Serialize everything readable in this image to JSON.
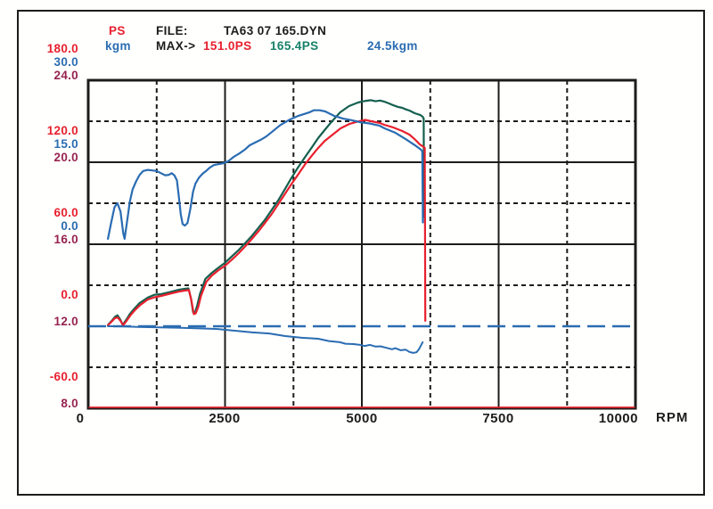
{
  "header": {
    "legend": {
      "ps_label": "PS",
      "kgm_label": "kgm"
    },
    "file_label": "FILE:",
    "file_value": "TA63 07 165.DYN",
    "max_label": "MAX->",
    "max_values": {
      "ps_run1": "151.0PS",
      "ps_run2": "165.4PS",
      "kgm": "24.5kgm"
    }
  },
  "colors": {
    "red": "#e8202e",
    "teal_text": "#178168",
    "teal_curve": "#155f4e",
    "blue": "#2a6cb2",
    "maroon": "#962450",
    "black": "#1c1c1c"
  },
  "chart_data": {
    "type": "line",
    "title": "Dyno run TA63 07 165.DYN - power (PS) and torque (kgm) vs engine speed",
    "xlabel": "RPM",
    "x_axis": {
      "min": 0,
      "max": 10000,
      "label": "RPM",
      "major_ticks": [
        0,
        2500,
        5000,
        7500,
        10000
      ],
      "tick_labels": [
        "0",
        "2500",
        "5000",
        "7500",
        "10000"
      ],
      "minor_dashed_ticks": [
        1250,
        3750,
        6250,
        8750
      ]
    },
    "y_axes": {
      "ps": {
        "min": -60,
        "max": 180,
        "unit": "PS",
        "gridline_labels": [
          "180.0",
          "120.0",
          "60.0",
          "0.0",
          "-60.0"
        ]
      },
      "kgm": {
        "min": -30,
        "max": 30,
        "unit": "kgm",
        "gridline_labels": [
          "30.0",
          "15.0",
          "0.0"
        ]
      },
      "af": {
        "min": 8,
        "max": 24,
        "unit": "",
        "gridline_labels": [
          "24.0",
          "20.0",
          "16.0",
          "12.0",
          "8.0"
        ]
      }
    },
    "grid": {
      "h_solid_ps": [
        120,
        60
      ],
      "h_dashed_ps": [
        150,
        90,
        30,
        -30
      ]
    },
    "reference_line": {
      "scale": "af",
      "value": 12.0,
      "style": "long-dash",
      "colorKey": "blue"
    },
    "series": [
      {
        "name": "power-run-2",
        "scale": "ps",
        "colorKey": "teal_curve",
        "width": 2.2,
        "max_label": "165.4PS",
        "points": [
          [
            360,
            1
          ],
          [
            430,
            4
          ],
          [
            490,
            7
          ],
          [
            535,
            8
          ],
          [
            585,
            5
          ],
          [
            630,
            1
          ],
          [
            700,
            5
          ],
          [
            760,
            9
          ],
          [
            845,
            13
          ],
          [
            940,
            17
          ],
          [
            1090,
            21
          ],
          [
            1210,
            23
          ],
          [
            1330,
            23.5
          ],
          [
            1490,
            25
          ],
          [
            1655,
            26.7
          ],
          [
            1750,
            27.3
          ],
          [
            1830,
            27.7
          ],
          [
            1880,
            20
          ],
          [
            1915,
            10.4
          ],
          [
            1945,
            9.1
          ],
          [
            1990,
            15
          ],
          [
            2040,
            23.5
          ],
          [
            2140,
            34.6
          ],
          [
            2255,
            39
          ],
          [
            2370,
            42.5
          ],
          [
            2495,
            46.3
          ],
          [
            2620,
            51
          ],
          [
            2740,
            55.4
          ],
          [
            2860,
            60.5
          ],
          [
            2985,
            65.9
          ],
          [
            3100,
            71.5
          ],
          [
            3225,
            77.6
          ],
          [
            3350,
            85
          ],
          [
            3470,
            92
          ],
          [
            3590,
            100
          ],
          [
            3710,
            108.3
          ],
          [
            3830,
            116
          ],
          [
            3955,
            123.3
          ],
          [
            4080,
            130.5
          ],
          [
            4200,
            137.6
          ],
          [
            4320,
            143.5
          ],
          [
            4440,
            149.3
          ],
          [
            4605,
            156.5
          ],
          [
            4765,
            161.1
          ],
          [
            4930,
            163.7
          ],
          [
            5010,
            164.5
          ],
          [
            5090,
            165
          ],
          [
            5170,
            165.4
          ],
          [
            5250,
            164.6
          ],
          [
            5330,
            165.1
          ],
          [
            5415,
            164.3
          ],
          [
            5500,
            163
          ],
          [
            5575,
            161.7
          ],
          [
            5660,
            160.5
          ],
          [
            5740,
            159.8
          ],
          [
            5810,
            158.6
          ],
          [
            5870,
            157.8
          ],
          [
            5965,
            155.9
          ],
          [
            6065,
            154.6
          ],
          [
            6110,
            153.3
          ],
          [
            6130,
            152
          ],
          [
            6135,
            80
          ]
        ]
      },
      {
        "name": "power-run-1",
        "scale": "ps",
        "colorKey": "red",
        "width": 2.2,
        "max_label": "151.0PS",
        "points": [
          [
            360,
            0.7
          ],
          [
            430,
            3.5
          ],
          [
            490,
            6
          ],
          [
            540,
            6.4
          ],
          [
            590,
            4
          ],
          [
            640,
            0.7
          ],
          [
            710,
            4.5
          ],
          [
            780,
            8.5
          ],
          [
            850,
            11.7
          ],
          [
            950,
            15.5
          ],
          [
            1090,
            19.6
          ],
          [
            1210,
            21.2
          ],
          [
            1330,
            22.2
          ],
          [
            1490,
            23.8
          ],
          [
            1660,
            25.4
          ],
          [
            1760,
            26.1
          ],
          [
            1840,
            26.5
          ],
          [
            1885,
            19
          ],
          [
            1930,
            8.9
          ],
          [
            1965,
            9.5
          ],
          [
            2010,
            14
          ],
          [
            2060,
            22.2
          ],
          [
            2160,
            32.6
          ],
          [
            2260,
            37.2
          ],
          [
            2380,
            41
          ],
          [
            2500,
            44.3
          ],
          [
            2620,
            48.5
          ],
          [
            2750,
            53.5
          ],
          [
            2870,
            58.5
          ],
          [
            2990,
            63.9
          ],
          [
            3110,
            69.5
          ],
          [
            3230,
            75.6
          ],
          [
            3350,
            82
          ],
          [
            3470,
            89.3
          ],
          [
            3590,
            96.5
          ],
          [
            3715,
            104.1
          ],
          [
            3835,
            111
          ],
          [
            3960,
            118.3
          ],
          [
            4080,
            124.5
          ],
          [
            4200,
            130.4
          ],
          [
            4320,
            135.5
          ],
          [
            4450,
            139.6
          ],
          [
            4610,
            144.8
          ],
          [
            4770,
            148
          ],
          [
            4930,
            149.8
          ],
          [
            5060,
            151
          ],
          [
            5170,
            150
          ],
          [
            5330,
            148.7
          ],
          [
            5410,
            147.4
          ],
          [
            5580,
            145.4
          ],
          [
            5740,
            142.8
          ],
          [
            5870,
            140.2
          ],
          [
            5970,
            136.7
          ],
          [
            6060,
            133
          ],
          [
            6110,
            131.7
          ],
          [
            6150,
            130.5
          ],
          [
            6160,
            4
          ]
        ]
      },
      {
        "name": "torque",
        "scale": "kgm",
        "colorKey": "blue",
        "width": 2.2,
        "max_label": "24.5kgm",
        "points": [
          [
            360,
            1
          ],
          [
            420,
            4
          ],
          [
            480,
            6.8
          ],
          [
            535,
            7.5
          ],
          [
            590,
            6
          ],
          [
            640,
            2
          ],
          [
            665,
            1
          ],
          [
            700,
            3.5
          ],
          [
            760,
            7.8
          ],
          [
            810,
            10
          ],
          [
            875,
            11.5
          ],
          [
            940,
            12.7
          ],
          [
            1005,
            13.4
          ],
          [
            1090,
            13.6
          ],
          [
            1170,
            13.5
          ],
          [
            1250,
            13.4
          ],
          [
            1330,
            13
          ],
          [
            1410,
            12.6
          ],
          [
            1475,
            12.7
          ],
          [
            1525,
            13
          ],
          [
            1575,
            12.6
          ],
          [
            1620,
            11.7
          ],
          [
            1655,
            8.8
          ],
          [
            1690,
            5.5
          ],
          [
            1725,
            3.7
          ],
          [
            1765,
            3.4
          ],
          [
            1815,
            3.9
          ],
          [
            1865,
            6.4
          ],
          [
            1915,
            9.6
          ],
          [
            1960,
            11.1
          ],
          [
            2025,
            12.2
          ],
          [
            2090,
            12.9
          ],
          [
            2155,
            13.4
          ],
          [
            2220,
            14
          ],
          [
            2300,
            14.5
          ],
          [
            2465,
            14.8
          ],
          [
            2560,
            15.2
          ],
          [
            2660,
            16
          ],
          [
            2760,
            16.6
          ],
          [
            2860,
            17.3
          ],
          [
            2950,
            18.1
          ],
          [
            3050,
            18.6
          ],
          [
            3150,
            19.1
          ],
          [
            3250,
            19.7
          ],
          [
            3350,
            20.5
          ],
          [
            3510,
            21.8
          ],
          [
            3680,
            22.8
          ],
          [
            3840,
            23.5
          ],
          [
            4035,
            24.1
          ],
          [
            4120,
            24.5
          ],
          [
            4230,
            24.5
          ],
          [
            4330,
            24.3
          ],
          [
            4490,
            23.5
          ],
          [
            4650,
            23
          ],
          [
            4810,
            22.7
          ],
          [
            4975,
            22.3
          ],
          [
            5140,
            22.1
          ],
          [
            5320,
            21.7
          ],
          [
            5415,
            21.2
          ],
          [
            5610,
            20.4
          ],
          [
            5805,
            19.2
          ],
          [
            6000,
            17.9
          ],
          [
            6080,
            17.3
          ],
          [
            6105,
            17
          ],
          [
            6115,
            4
          ]
        ]
      },
      {
        "name": "af-trace",
        "scale": "af",
        "colorKey": "blue",
        "width": 2,
        "points": [
          [
            360,
            12
          ],
          [
            600,
            12
          ],
          [
            900,
            11.97
          ],
          [
            1300,
            11.95
          ],
          [
            1700,
            11.92
          ],
          [
            2100,
            11.89
          ],
          [
            2340,
            11.87
          ],
          [
            2700,
            11.78
          ],
          [
            3000,
            11.7
          ],
          [
            3310,
            11.65
          ],
          [
            3600,
            11.52
          ],
          [
            3900,
            11.44
          ],
          [
            4200,
            11.39
          ],
          [
            4400,
            11.28
          ],
          [
            4600,
            11.22
          ],
          [
            4700,
            11.15
          ],
          [
            4850,
            11.13
          ],
          [
            4950,
            11.1
          ],
          [
            5050,
            11.04
          ],
          [
            5150,
            11.09
          ],
          [
            5250,
            11.01
          ],
          [
            5340,
            11.02
          ],
          [
            5450,
            10.95
          ],
          [
            5550,
            10.88
          ],
          [
            5610,
            10.93
          ],
          [
            5710,
            10.83
          ],
          [
            5800,
            10.86
          ],
          [
            5870,
            10.75
          ],
          [
            5935,
            10.7
          ],
          [
            6000,
            10.73
          ],
          [
            6050,
            10.91
          ],
          [
            6110,
            11.22
          ]
        ]
      },
      {
        "name": "bottom-red-trace",
        "scale": "ps",
        "colorKey": "red",
        "width": 1.6,
        "points": [
          [
            20,
            -59.3
          ],
          [
            9980,
            -59.3
          ]
        ]
      }
    ],
    "legend_position": "top-left",
    "grid_on": true
  }
}
